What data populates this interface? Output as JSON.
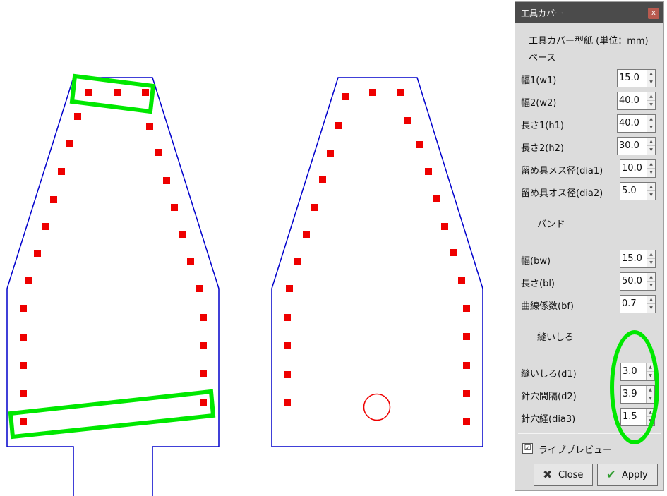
{
  "dialog": {
    "title": "工具カバー",
    "close_glyph": "x",
    "heading": "工具カバー型紙 (単位：mm)",
    "section_base": "ベース",
    "section_band": "バンド",
    "section_seam": "縫いしろ",
    "fields": [
      {
        "label": "幅1(w1)",
        "value": "15.0"
      },
      {
        "label": "幅2(w2)",
        "value": "40.0"
      },
      {
        "label": "長さ1(h1)",
        "value": "40.0"
      },
      {
        "label": "長さ2(h2)",
        "value": "30.0"
      },
      {
        "label": "留め具メス径(dia1)",
        "value": "10.0"
      },
      {
        "label": "留め具オス径(dia2)",
        "value": "5.0"
      },
      {
        "label": "幅(bw)",
        "value": "15.0"
      },
      {
        "label": "長さ(bl)",
        "value": "50.0"
      },
      {
        "label": "曲線係数(bf)",
        "value": "0.7"
      },
      {
        "label": "縫いしろ(d1)",
        "value": "3.0"
      },
      {
        "label": "針穴間隔(d2)",
        "value": "3.9"
      },
      {
        "label": "針穴経(dia3)",
        "value": "1.5"
      }
    ],
    "spin_up": "▲",
    "spin_down": "▼",
    "live_preview_label": "ライブプレビュー",
    "live_preview_checked": true,
    "check_glyph": "☑",
    "close_button": "Close",
    "apply_button": "Apply"
  },
  "colors": {
    "outline": "#0000cc",
    "stitch": "#ee0000",
    "highlight": "#00e800"
  }
}
